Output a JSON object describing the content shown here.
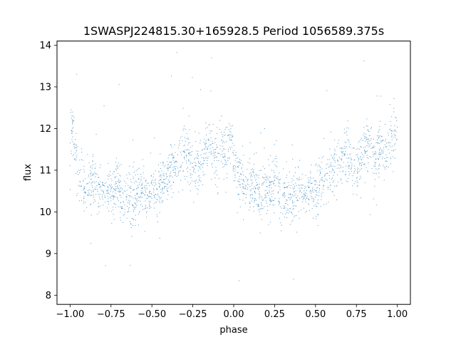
{
  "chart_data": {
    "type": "scatter",
    "title": "1SWASPJ224815.30+165928.5 Period 1056589.375s",
    "xlabel": "phase",
    "ylabel": "flux",
    "xlim": [
      -1.08,
      1.08
    ],
    "ylim": [
      7.78,
      14.1
    ],
    "x_ticks": [
      -1.0,
      -0.75,
      -0.5,
      -0.25,
      0.0,
      0.25,
      0.5,
      0.75,
      1.0
    ],
    "x_tick_labels": [
      "−1.00",
      "−0.75",
      "−0.50",
      "−0.25",
      "0.00",
      "0.25",
      "0.50",
      "0.75",
      "1.00"
    ],
    "y_ticks": [
      8,
      9,
      10,
      11,
      12,
      13,
      14
    ],
    "y_tick_labels": [
      "8",
      "9",
      "10",
      "11",
      "12",
      "13",
      "14"
    ],
    "grid": false,
    "legend": "none",
    "marker_color": "#1f77b4",
    "series": [
      {
        "x": [
          -0.98,
          -0.95,
          -0.92,
          -0.89,
          -0.86,
          -0.83,
          -0.8,
          -0.77,
          -0.74,
          -0.71,
          -0.68,
          -0.65,
          -0.62,
          -0.59,
          -0.56,
          -0.53,
          -0.5,
          -0.47,
          -0.44,
          -0.41,
          -0.38,
          -0.35,
          -0.32,
          -0.29,
          -0.26,
          -0.23,
          -0.2,
          -0.17,
          -0.14,
          -0.11,
          -0.08,
          -0.05,
          -0.02,
          0.02,
          0.05,
          0.08,
          0.11,
          0.14,
          0.17,
          0.2,
          0.23,
          0.26,
          0.29,
          0.32,
          0.35,
          0.38,
          0.41,
          0.44,
          0.47,
          0.5,
          0.53,
          0.56,
          0.59,
          0.62,
          0.65,
          0.68,
          0.71,
          0.74,
          0.77,
          0.8,
          0.83,
          0.86,
          0.89,
          0.92,
          0.95,
          0.98
        ],
        "y": [
          11.9,
          11.0,
          10.7,
          10.6,
          10.8,
          10.5,
          10.4,
          10.6,
          10.4,
          10.9,
          10.2,
          10.3,
          10.2,
          10.4,
          10.5,
          10.3,
          10.6,
          10.4,
          10.7,
          10.8,
          11.0,
          11.1,
          11.3,
          11.5,
          11.2,
          11.0,
          11.2,
          11.5,
          11.7,
          11.3,
          11.6,
          11.3,
          11.7,
          11.0,
          10.7,
          10.6,
          10.8,
          10.5,
          10.4,
          10.6,
          10.4,
          10.9,
          10.2,
          10.3,
          10.2,
          10.4,
          10.5,
          10.3,
          10.6,
          10.4,
          10.7,
          10.8,
          11.0,
          11.1,
          11.3,
          11.5,
          11.2,
          11.0,
          11.2,
          11.5,
          11.7,
          11.3,
          11.6,
          11.3,
          11.7,
          11.9
        ]
      }
    ]
  }
}
